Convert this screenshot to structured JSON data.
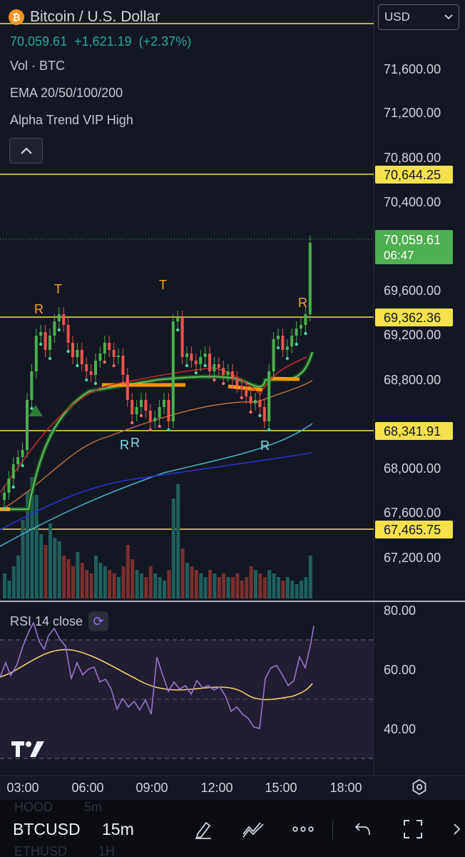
{
  "header": {
    "title": "Bitcoin / U.S. Dollar",
    "btc_icon": "bitcoin-icon",
    "price": "70,059.61",
    "change": "+1,621.19",
    "change_pct": "(+2.37%)",
    "indicators": [
      "Vol · BTC",
      "EMA 20/50/100/200",
      "Alpha Trend VIP High"
    ],
    "currency": "USD"
  },
  "price_axis": {
    "ticks": [
      "71,600.00",
      "71,200.00",
      "70,800.00",
      "70,400.00",
      "69,600.00",
      "69,200.00",
      "68,800.00",
      "68,000.00",
      "67,600.00",
      "67,200.00"
    ],
    "hlines": [
      {
        "label": "70,644.25",
        "value": 70644.25
      },
      {
        "label": "69,362.36",
        "value": 69362.36
      },
      {
        "label": "68,341.91",
        "value": 68341.91
      },
      {
        "label": "67,465.75",
        "value": 67465.75
      }
    ],
    "current": {
      "label": "70,059.61",
      "countdown": "06:47"
    }
  },
  "annotations": [
    "T",
    "R",
    "T",
    "R",
    "R",
    "R",
    "R"
  ],
  "rsi": {
    "label": "RSI 14 close",
    "ticks": [
      "80.00",
      "60.00",
      "40.00"
    ]
  },
  "time_axis": [
    "03:00",
    "06:00",
    "09:00",
    "12:00",
    "15:00",
    "18:00"
  ],
  "bottom_bar": {
    "symbol": "BTCUSD",
    "interval": "15m",
    "ghost_top": [
      "HOOD",
      "5m"
    ],
    "ghost_bottom": [
      "ETHUSD",
      "1H"
    ]
  },
  "colors": {
    "up": "#26a69a",
    "candle_up": "#4caf50",
    "down": "#ef5350",
    "level": "#f5e14d",
    "current": "#4caf50",
    "rsi": "#7e57c2",
    "rsi_ma": "#f2d36b"
  }
}
